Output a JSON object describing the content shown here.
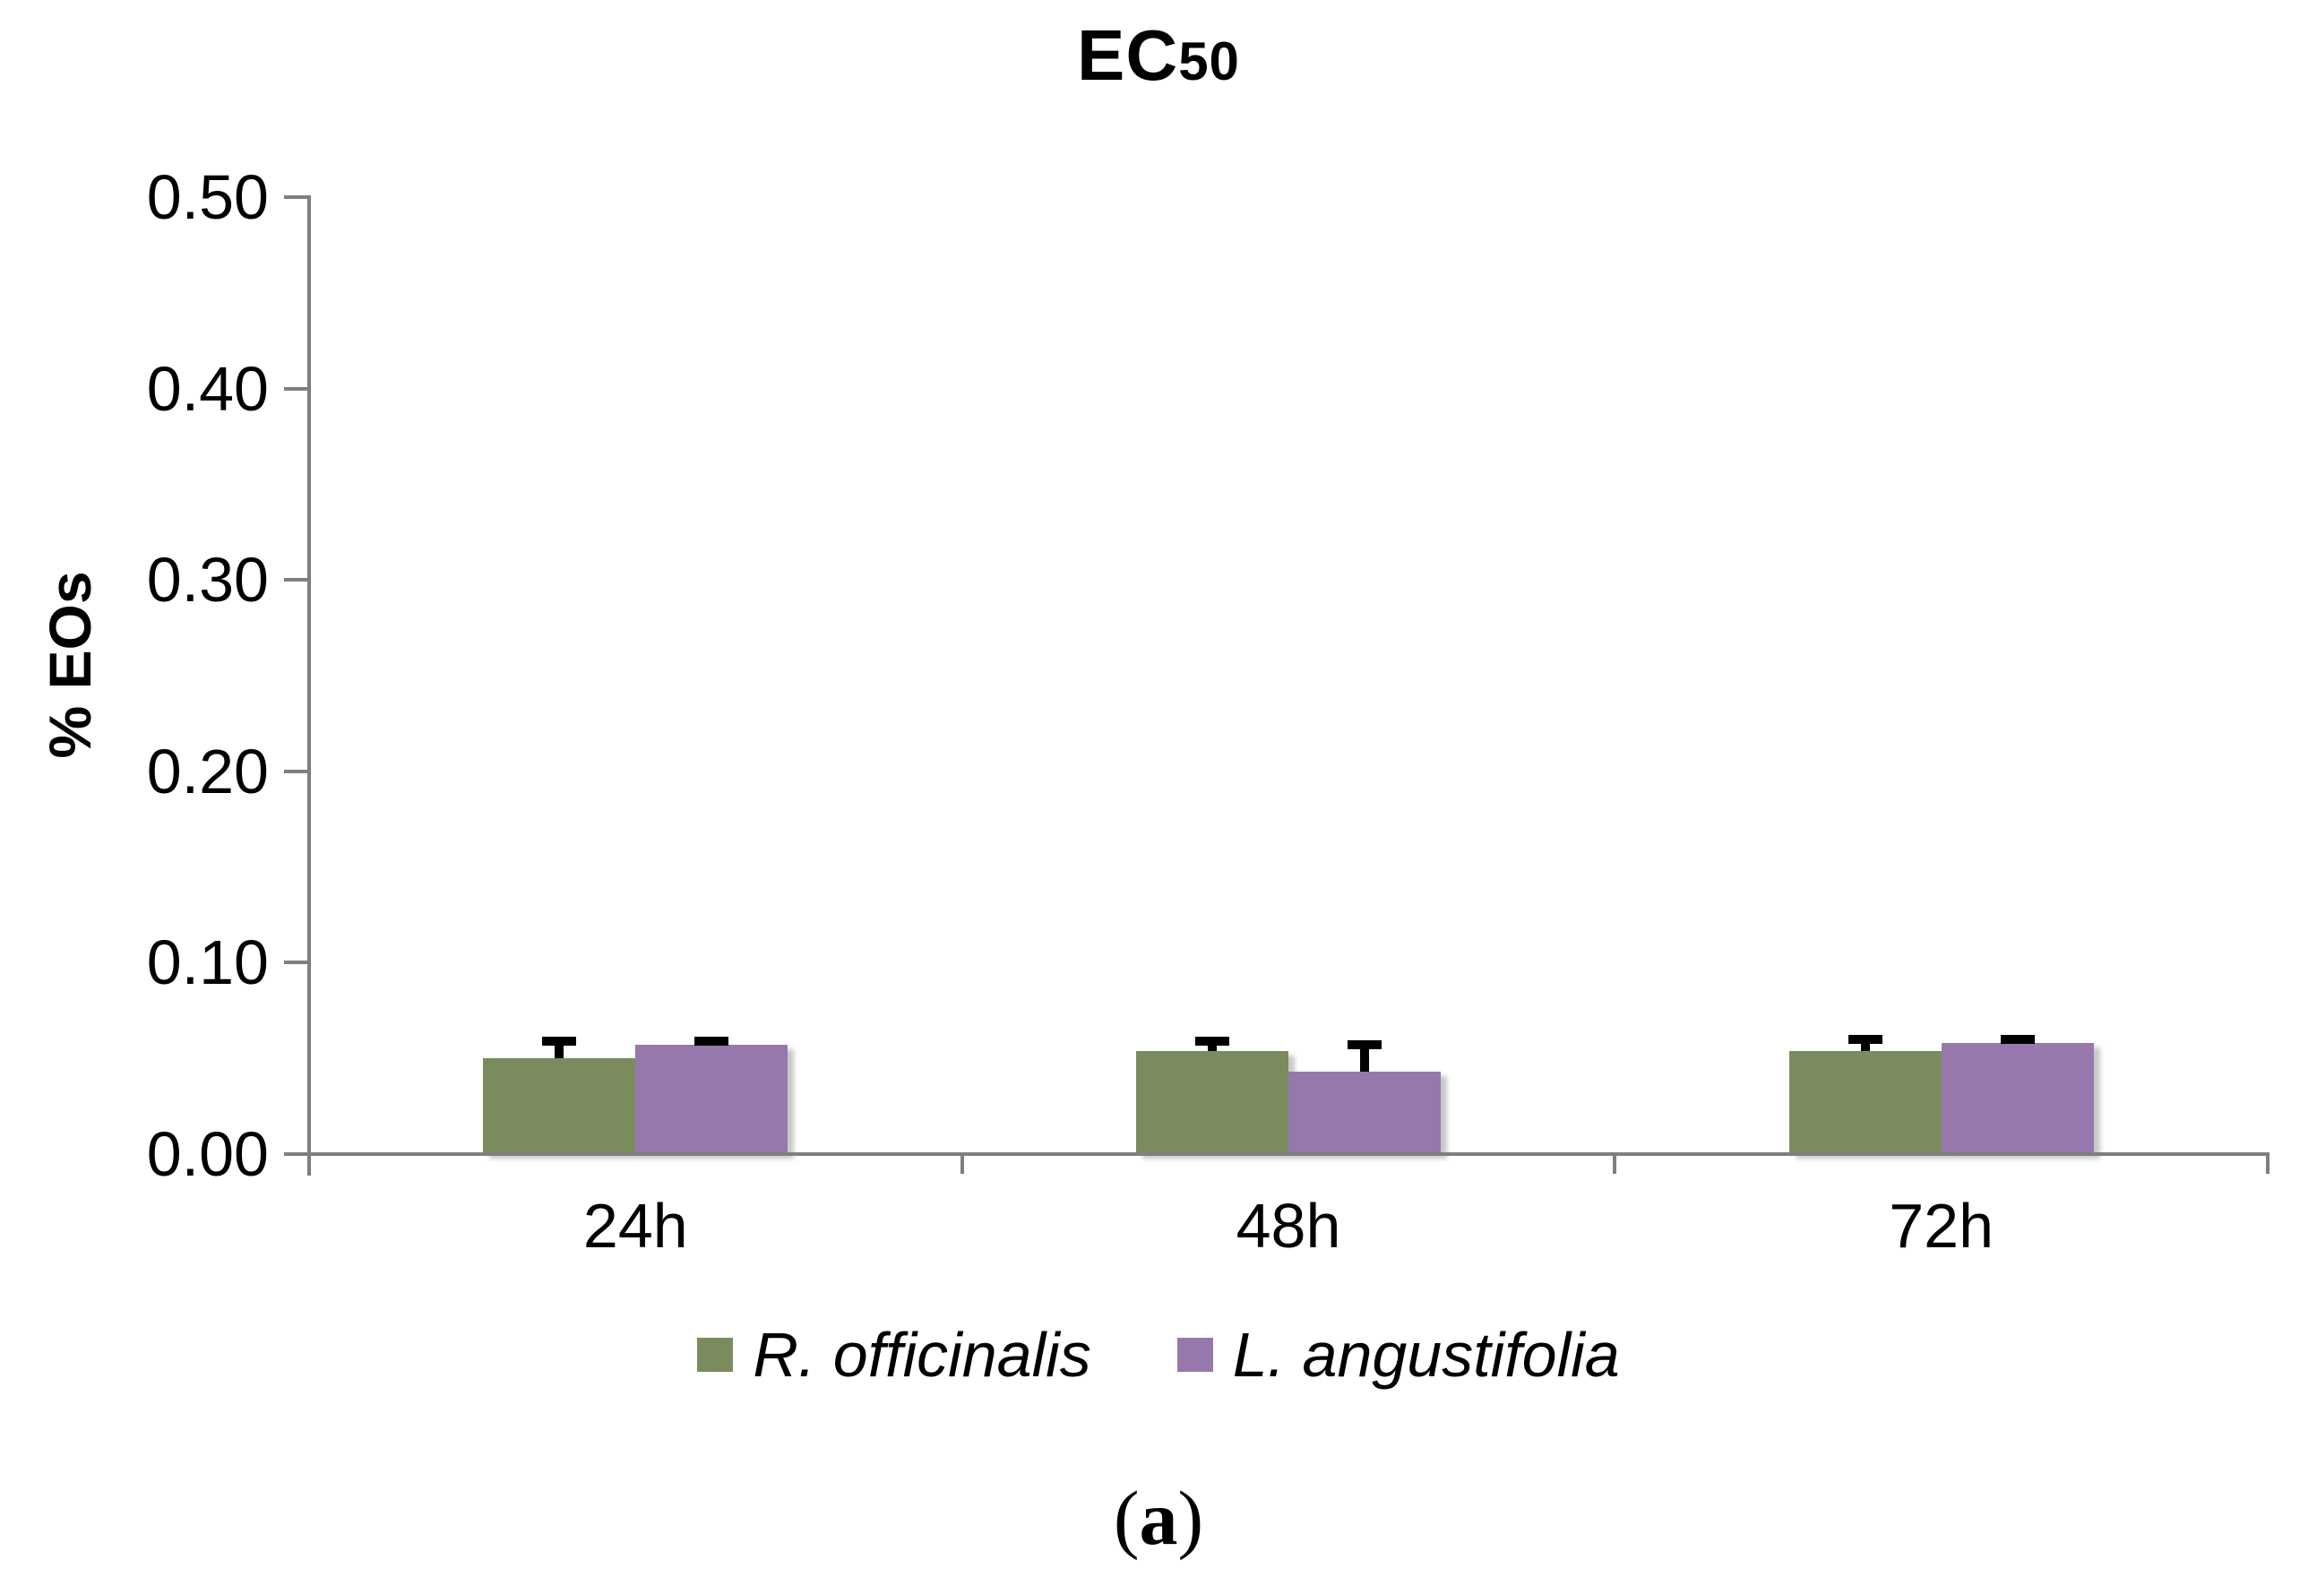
{
  "title": {
    "main": "EC",
    "sub": "50"
  },
  "axes": {
    "y_title": "% EOs",
    "y_tick_labels": [
      "0.00",
      "0.10",
      "0.20",
      "0.30",
      "0.40",
      "0.50"
    ],
    "x_tick_labels": [
      "24h",
      "48h",
      "72h"
    ]
  },
  "caption": {
    "open": "(",
    "letter": "a",
    "close": ")"
  },
  "colors": {
    "series_green": "#7A8C5E",
    "series_purple": "#9678AD",
    "axis": "#7F7F7F",
    "error_bar": "#000000"
  },
  "chart_data": {
    "type": "bar",
    "title": "EC50",
    "xlabel": "",
    "ylabel": "% EOs",
    "categories": [
      "24h",
      "48h",
      "72h"
    ],
    "series": [
      {
        "name": "R. officinalis",
        "color": "#7A8C5E",
        "values": [
          0.05,
          0.054,
          0.054
        ],
        "errors_plus": [
          0.009,
          0.005,
          0.006
        ]
      },
      {
        "name": "L. angustifolia",
        "color": "#9678AD",
        "values": [
          0.057,
          0.043,
          0.058
        ],
        "errors_plus": [
          0.002,
          0.014,
          0.002
        ]
      }
    ],
    "ylim": [
      0,
      0.5
    ],
    "ytick_step": 0.1,
    "grid": false,
    "error_bars": true,
    "legend_position": "bottom",
    "subcaption": "(a)"
  }
}
